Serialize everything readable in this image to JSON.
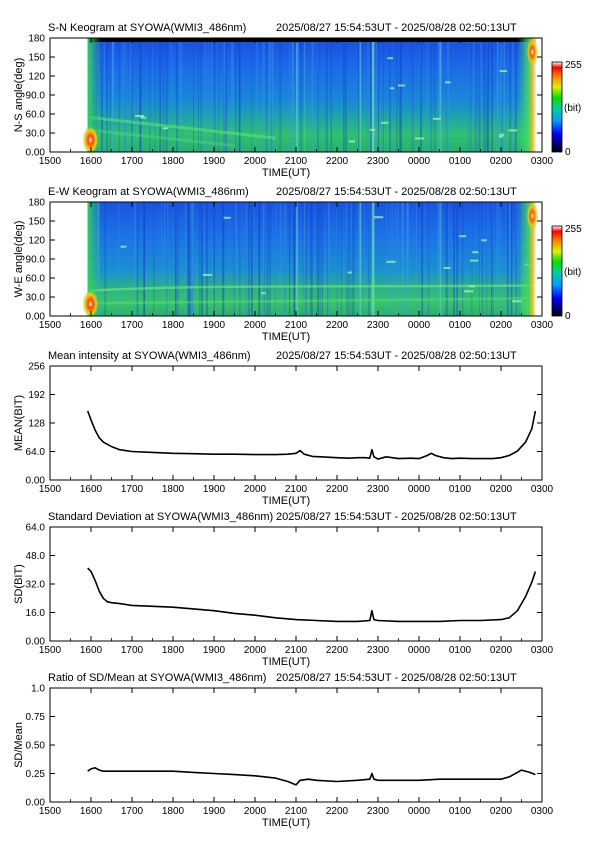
{
  "chart_data": [
    {
      "type": "heatmap",
      "title": "S-N Keogram at SYOWA(WMI3_486nm)",
      "time_range": "2025/08/27 15:54:53UT - 2025/08/28 02:50:13UT",
      "xlabel": "TIME(UT)",
      "ylabel": "N-S angle(deg)",
      "x_ticks": [
        "1500",
        "1600",
        "1700",
        "1800",
        "1900",
        "2000",
        "2100",
        "2200",
        "2300",
        "0000",
        "0100",
        "0200",
        "0300"
      ],
      "y_ticks": [
        "0.00",
        "30.0",
        "60.0",
        "90.0",
        "120",
        "150",
        "180"
      ],
      "ylim": [
        0,
        180
      ],
      "colorbar": {
        "min_label": "0",
        "max_label": "255",
        "unit_label": "(bit)"
      },
      "data_start_hour": 15.915,
      "data_end_hour": 26.837,
      "grid": false
    },
    {
      "type": "heatmap",
      "title": "E-W Keogram at SYOWA(WMI3_486nm)",
      "time_range": "2025/08/27 15:54:53UT - 2025/08/28 02:50:13UT",
      "xlabel": "TIME(UT)",
      "ylabel": "W-E angle(deg)",
      "x_ticks": [
        "1500",
        "1600",
        "1700",
        "1800",
        "1900",
        "2000",
        "2100",
        "2200",
        "2300",
        "0000",
        "0100",
        "0200",
        "0300"
      ],
      "y_ticks": [
        "0.00",
        "30.0",
        "60.0",
        "90.0",
        "120",
        "150",
        "180"
      ],
      "ylim": [
        0,
        180
      ],
      "colorbar": {
        "min_label": "0",
        "max_label": "255",
        "unit_label": "(bit)"
      },
      "data_start_hour": 15.915,
      "data_end_hour": 26.837,
      "grid": false
    },
    {
      "type": "line",
      "title": "Mean intensity at SYOWA(WMI3_486nm)",
      "time_range": "2025/08/27 15:54:53UT - 2025/08/28 02:50:13UT",
      "xlabel": "TIME(UT)",
      "ylabel": "MEAN(BIT)",
      "x_ticks": [
        "1500",
        "1600",
        "1700",
        "1800",
        "1900",
        "2000",
        "2100",
        "2200",
        "2300",
        "0000",
        "0100",
        "0200",
        "0300"
      ],
      "y_ticks": [
        "0.00",
        "64.0",
        "128",
        "192",
        "256"
      ],
      "ylim": [
        0,
        256
      ],
      "grid": false,
      "series": [
        {
          "x": [
            15.92,
            16.0,
            16.1,
            16.2,
            16.3,
            16.5,
            16.7,
            17.0,
            17.5,
            18.0,
            18.5,
            19.0,
            19.5,
            20.0,
            20.5,
            20.8,
            21.0,
            21.1,
            21.2,
            21.4,
            21.6,
            22.0,
            22.3,
            22.5,
            22.7,
            22.8,
            22.85,
            22.9,
            23.0,
            23.2,
            23.5,
            23.8,
            24.0,
            24.2,
            24.3,
            24.4,
            24.6,
            24.8,
            25.0,
            25.3,
            25.6,
            25.8,
            26.0,
            26.2,
            26.4,
            26.6,
            26.75,
            26.84
          ],
          "values": [
            155,
            135,
            112,
            95,
            85,
            75,
            68,
            64,
            62,
            60,
            59,
            58,
            58,
            57,
            57,
            58,
            60,
            66,
            58,
            53,
            52,
            50,
            49,
            50,
            50,
            49,
            68,
            52,
            47,
            52,
            48,
            49,
            48,
            55,
            60,
            55,
            50,
            48,
            49,
            48,
            48,
            48,
            50,
            55,
            65,
            85,
            115,
            155
          ]
        }
      ]
    },
    {
      "type": "line",
      "title": "Standard Deviation at SYOWA(WMI3_486nm)",
      "time_range": "2025/08/27 15:54:53UT - 2025/08/28 02:50:13UT",
      "xlabel": "TIME(UT)",
      "ylabel": "SD(BIT)",
      "x_ticks": [
        "1500",
        "1600",
        "1700",
        "1800",
        "1900",
        "2000",
        "2100",
        "2200",
        "2300",
        "0000",
        "0100",
        "0200",
        "0300"
      ],
      "y_ticks": [
        "0.00",
        "16.0",
        "32.0",
        "48.0",
        "64.0"
      ],
      "ylim": [
        0,
        64
      ],
      "grid": false,
      "series": [
        {
          "x": [
            15.92,
            16.0,
            16.1,
            16.2,
            16.3,
            16.4,
            16.5,
            16.7,
            17.0,
            17.5,
            18.0,
            18.5,
            19.0,
            19.5,
            20.0,
            20.5,
            21.0,
            21.5,
            22.0,
            22.5,
            22.8,
            22.85,
            22.9,
            23.0,
            23.5,
            24.0,
            24.5,
            25.0,
            25.5,
            26.0,
            26.2,
            26.4,
            26.6,
            26.75,
            26.84
          ],
          "values": [
            41,
            39,
            34,
            28,
            24,
            22,
            21.5,
            21,
            20,
            19.5,
            19,
            18,
            17,
            15.5,
            14.5,
            13,
            12,
            11.5,
            11,
            11,
            11.5,
            17,
            12,
            11.5,
            11,
            11,
            11,
            11.5,
            11.5,
            12,
            13,
            17,
            25,
            33,
            39
          ]
        }
      ]
    },
    {
      "type": "line",
      "title": "Ratio of SD/Mean at SYOWA(WMI3_486nm)",
      "time_range": "2025/08/27 15:54:53UT - 2025/08/28 02:50:13UT",
      "xlabel": "TIME(UT)",
      "ylabel": "SD/Mean",
      "x_ticks": [
        "1500",
        "1600",
        "1700",
        "1800",
        "1900",
        "2000",
        "2100",
        "2200",
        "2300",
        "0000",
        "0100",
        "0200",
        "0300"
      ],
      "y_ticks": [
        "0.00",
        "0.25",
        "0.50",
        "0.75",
        "1.0"
      ],
      "ylim": [
        0,
        1.0
      ],
      "grid": false,
      "series": [
        {
          "x": [
            15.92,
            16.0,
            16.1,
            16.2,
            16.3,
            16.5,
            17.0,
            17.5,
            18.0,
            18.5,
            19.0,
            19.5,
            20.0,
            20.5,
            20.8,
            21.0,
            21.1,
            21.3,
            21.5,
            22.0,
            22.5,
            22.8,
            22.85,
            22.9,
            23.0,
            23.5,
            24.0,
            24.5,
            25.0,
            25.5,
            26.0,
            26.2,
            26.4,
            26.5,
            26.7,
            26.84
          ],
          "values": [
            0.27,
            0.29,
            0.3,
            0.28,
            0.27,
            0.27,
            0.27,
            0.27,
            0.27,
            0.26,
            0.25,
            0.24,
            0.23,
            0.21,
            0.18,
            0.15,
            0.19,
            0.2,
            0.19,
            0.18,
            0.19,
            0.2,
            0.25,
            0.2,
            0.19,
            0.19,
            0.19,
            0.2,
            0.2,
            0.2,
            0.2,
            0.22,
            0.26,
            0.28,
            0.26,
            0.24
          ]
        }
      ]
    }
  ]
}
